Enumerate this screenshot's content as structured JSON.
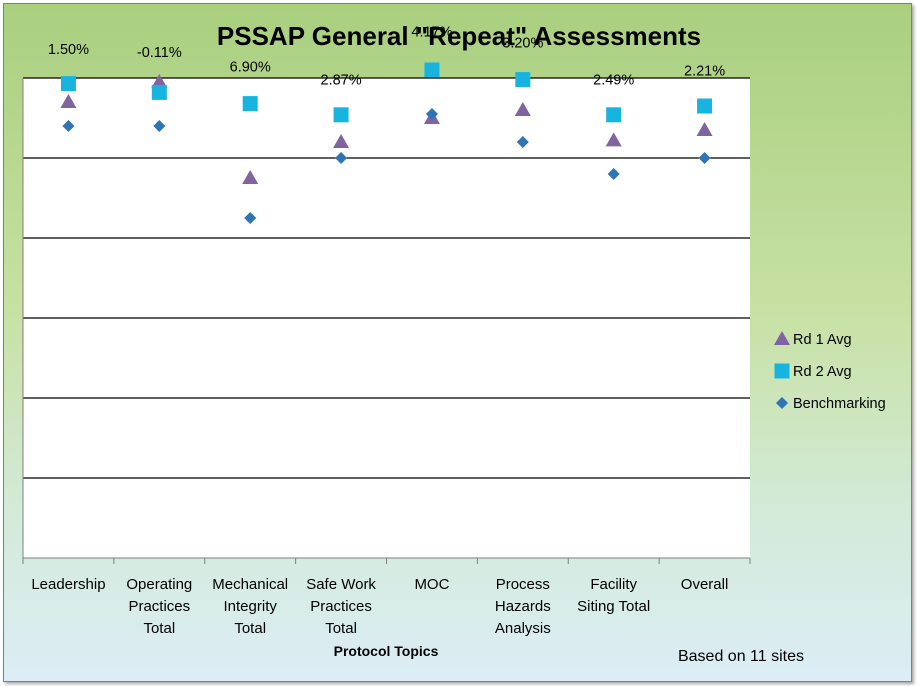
{
  "chart_data": {
    "type": "scatter",
    "title": "PSSAP General \"Repeat\" Assessments",
    "xlabel": "Protocol Topics",
    "note": "Based on 11 sites",
    "categories": [
      [
        "Leadership"
      ],
      [
        "Operating",
        "Practices",
        "Total"
      ],
      [
        "Mechanical",
        "Integrity",
        "Total"
      ],
      [
        "Safe Work",
        "Practices",
        "Total"
      ],
      [
        "MOC"
      ],
      [
        "Process",
        "Hazards",
        "Analysis"
      ],
      [
        "Facility",
        "Siting Total"
      ],
      [
        "Overall"
      ]
    ],
    "ylim": [
      0,
      6
    ],
    "gridlines": 6,
    "y_tick_labels_shown": false,
    "legend_position": "right",
    "series": [
      {
        "name": "Rd 1 Avg",
        "marker": "triangle",
        "color": "#8064a2",
        "values": [
          5.7,
          5.95,
          4.75,
          5.2,
          5.5,
          5.6,
          5.22,
          5.35
        ]
      },
      {
        "name": "Rd 2 Avg",
        "marker": "square",
        "color": "#17b4e0",
        "values": [
          5.93,
          5.82,
          5.68,
          5.54,
          6.1,
          5.98,
          5.54,
          5.65
        ]
      },
      {
        "name": "Benchmarking",
        "marker": "diamond",
        "color": "#2e75b6",
        "values": [
          5.4,
          5.4,
          4.25,
          5.0,
          5.55,
          5.2,
          4.8,
          5.0
        ]
      }
    ],
    "data_labels": [
      "1.50%",
      "-0.11%",
      "6.90%",
      "2.87%",
      "4.17%",
      "3.20%",
      "2.49%",
      "2.21%"
    ],
    "data_label_values": [
      6.3,
      6.26,
      6.08,
      5.92,
      6.52,
      6.38,
      5.92,
      6.03
    ]
  }
}
